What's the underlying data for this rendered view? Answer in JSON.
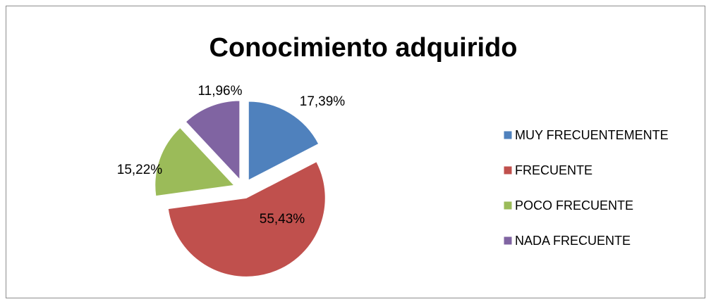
{
  "chart_data": {
    "type": "pie",
    "title": "Conocimiento adquirido",
    "categories": [
      "MUY FRECUENTEMENTE",
      "FRECUENTE",
      "POCO FRECUENTE",
      "NADA FRECUENTE"
    ],
    "values": [
      17.39,
      55.43,
      15.22,
      11.96
    ],
    "value_labels": [
      "17,39%",
      "55,43%",
      "15,22%",
      "11,96%"
    ],
    "colors": [
      "#4f81bd",
      "#c0504d",
      "#9bbb59",
      "#8064a2"
    ],
    "legend": "right"
  }
}
